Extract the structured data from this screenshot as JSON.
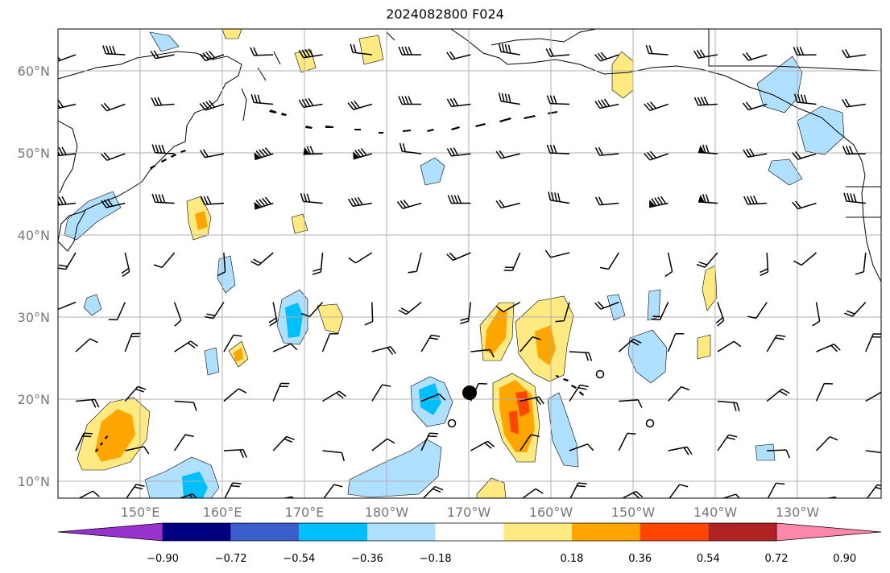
{
  "title": "2024082800 F024",
  "lat_labels": [
    "60°N",
    "50°N",
    "40°N",
    "30°N",
    "20°N",
    "10°N"
  ],
  "lon_labels": [
    "150°E",
    "160°E",
    "170°E",
    "180°W",
    "170°W",
    "160°W",
    "150°W",
    "140°W",
    "130°W"
  ],
  "colorbar": {
    "colors": [
      "#9932cc",
      "#000080",
      "#3a5fcd",
      "#00bfff",
      "#b0e0ff",
      "#ffffff",
      "#ffea82",
      "#ffa500",
      "#ff4500",
      "#b22222",
      "#ff88aa"
    ],
    "ticks": [
      "−0.90",
      "−0.72",
      "−0.54",
      "−0.36",
      "−0.18",
      "0.18",
      "0.36",
      "0.54",
      "0.72",
      "0.90"
    ]
  },
  "colors": {
    "grid": "#b0b0b0",
    "coast": "#000000",
    "blue_light": "#b0e0ff",
    "blue_mid": "#00bfff",
    "yellow": "#ffea82",
    "orange": "#ffa500",
    "red": "#ff4500"
  }
}
